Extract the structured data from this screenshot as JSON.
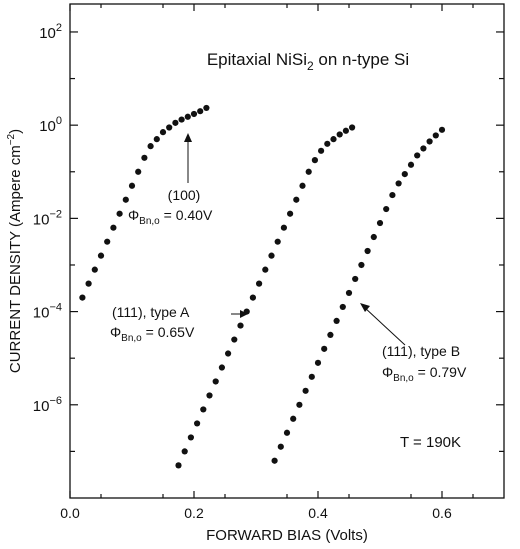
{
  "chart_data": {
    "type": "scatter",
    "title_parts": {
      "prefix": "Epitaxial NiSi",
      "subscript": "2",
      "suffix": " on n-type Si"
    },
    "xlabel": "FORWARD BIAS (Volts)",
    "ylabel": "CURRENT DENSITY (Ampere cm",
    "ylabel_sup": "−2",
    "ylabel_close": ")",
    "xlim": [
      0.0,
      0.7
    ],
    "ylog": true,
    "ylim_exponent": [
      -8,
      2.6
    ],
    "x_ticks": [
      {
        "value": 0.0,
        "label": "0.0"
      },
      {
        "value": 0.2,
        "label": "0.2"
      },
      {
        "value": 0.4,
        "label": "0.4"
      },
      {
        "value": 0.6,
        "label": "0.6"
      }
    ],
    "y_ticks": [
      {
        "exp": 2,
        "base": "10",
        "sup": "2"
      },
      {
        "exp": 0,
        "base": "10",
        "sup": "0"
      },
      {
        "exp": -2,
        "base": "10",
        "sup": "−2"
      },
      {
        "exp": -4,
        "base": "10",
        "sup": "−4"
      },
      {
        "exp": -6,
        "base": "10",
        "sup": "−6"
      }
    ],
    "temperature_label": "T = 190K",
    "series": [
      {
        "label": "(100)",
        "barrier_value": " = 0.40V",
        "x": [
          0.02,
          0.03,
          0.04,
          0.05,
          0.06,
          0.07,
          0.08,
          0.09,
          0.1,
          0.11,
          0.12,
          0.13,
          0.14,
          0.15,
          0.16,
          0.17,
          0.18,
          0.19,
          0.2,
          0.21,
          0.22
        ],
        "log_y": [
          -3.7,
          -3.4,
          -3.1,
          -2.8,
          -2.5,
          -2.2,
          -1.9,
          -1.6,
          -1.3,
          -1.0,
          -0.7,
          -0.45,
          -0.3,
          -0.15,
          -0.05,
          0.05,
          0.12,
          0.18,
          0.24,
          0.3,
          0.37
        ]
      },
      {
        "label": "(111), type A",
        "barrier_value": " = 0.65V",
        "x": [
          0.175,
          0.185,
          0.195,
          0.205,
          0.215,
          0.225,
          0.235,
          0.245,
          0.255,
          0.265,
          0.275,
          0.285,
          0.295,
          0.305,
          0.315,
          0.325,
          0.335,
          0.345,
          0.355,
          0.365,
          0.375,
          0.385,
          0.395,
          0.405,
          0.415,
          0.425,
          0.435,
          0.445,
          0.455
        ],
        "log_y": [
          -7.3,
          -7.0,
          -6.7,
          -6.4,
          -6.1,
          -5.8,
          -5.5,
          -5.2,
          -4.9,
          -4.6,
          -4.3,
          -4.0,
          -3.7,
          -3.4,
          -3.1,
          -2.8,
          -2.5,
          -2.2,
          -1.9,
          -1.6,
          -1.3,
          -1.0,
          -0.75,
          -0.55,
          -0.4,
          -0.3,
          -0.2,
          -0.12,
          -0.05
        ]
      },
      {
        "label": "(111), type B",
        "barrier_value": " = 0.79V",
        "x": [
          0.33,
          0.34,
          0.35,
          0.36,
          0.37,
          0.38,
          0.39,
          0.4,
          0.41,
          0.42,
          0.43,
          0.44,
          0.45,
          0.46,
          0.47,
          0.48,
          0.49,
          0.5,
          0.51,
          0.52,
          0.53,
          0.54,
          0.55,
          0.56,
          0.57,
          0.58,
          0.59,
          0.6
        ],
        "log_y": [
          -7.2,
          -6.9,
          -6.6,
          -6.3,
          -6.0,
          -5.7,
          -5.4,
          -5.1,
          -4.8,
          -4.5,
          -4.2,
          -3.9,
          -3.6,
          -3.3,
          -3.0,
          -2.7,
          -2.4,
          -2.1,
          -1.8,
          -1.5,
          -1.25,
          -1.05,
          -0.85,
          -0.65,
          -0.5,
          -0.35,
          -0.22,
          -0.1
        ]
      }
    ],
    "phi_symbol": "Φ",
    "phi_subscript": "Bn,o"
  }
}
